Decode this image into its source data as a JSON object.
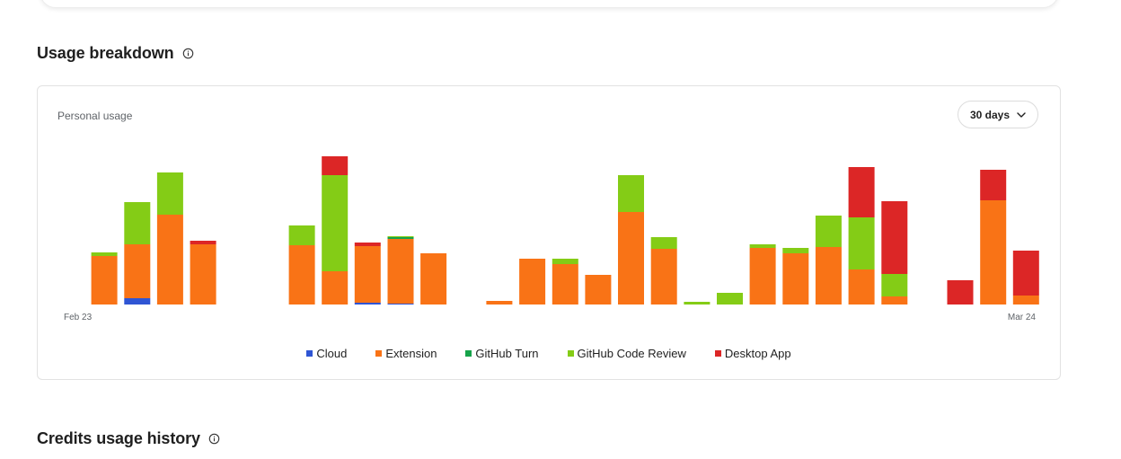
{
  "sections": {
    "usage_title": "Usage breakdown",
    "credits_title": "Credits usage history"
  },
  "card": {
    "label": "Personal usage",
    "range": "30 days"
  },
  "colors": {
    "cloud": "#2f55d4",
    "extension": "#f97316",
    "github_turn": "#16a34a",
    "github_code_review": "#84cc16",
    "desktop_app": "#dc2626"
  },
  "chart_data": {
    "type": "bar",
    "stacked": true,
    "x_start_label": "Feb 23",
    "x_end_label": "Mar 24",
    "legend_position": "bottom",
    "grid": false,
    "ylim": [
      0,
      180
    ],
    "series_order": [
      "Cloud",
      "Extension",
      "GitHub Turn",
      "GitHub Code Review",
      "Desktop App"
    ],
    "series_colors": [
      "#2f55d4",
      "#f97316",
      "#16a34a",
      "#84cc16",
      "#dc2626"
    ],
    "days": [
      {
        "values": [
          0,
          0,
          0,
          0,
          0
        ]
      },
      {
        "values": [
          0,
          54,
          0,
          4,
          0
        ]
      },
      {
        "values": [
          7,
          60,
          0,
          47,
          0
        ]
      },
      {
        "values": [
          0,
          100,
          0,
          47,
          0
        ]
      },
      {
        "values": [
          0,
          67,
          0,
          0,
          4
        ]
      },
      {
        "values": [
          0,
          0,
          0,
          0,
          0
        ]
      },
      {
        "values": [
          0,
          0,
          0,
          0,
          0
        ]
      },
      {
        "values": [
          0,
          66,
          0,
          22,
          0
        ]
      },
      {
        "values": [
          0,
          37,
          0,
          107,
          21
        ]
      },
      {
        "values": [
          2,
          63,
          0,
          0,
          4
        ]
      },
      {
        "values": [
          1,
          72,
          2,
          1,
          0
        ]
      },
      {
        "values": [
          0,
          57,
          0,
          0,
          0
        ]
      },
      {
        "values": [
          0,
          0,
          0,
          0,
          0
        ]
      },
      {
        "values": [
          0,
          4,
          0,
          0,
          0
        ]
      },
      {
        "values": [
          0,
          51,
          0,
          0,
          0
        ]
      },
      {
        "values": [
          0,
          45,
          0,
          6,
          0
        ]
      },
      {
        "values": [
          0,
          33,
          0,
          0,
          0
        ]
      },
      {
        "values": [
          0,
          103,
          0,
          41,
          0
        ]
      },
      {
        "values": [
          0,
          62,
          0,
          13,
          0
        ]
      },
      {
        "values": [
          0,
          0,
          0,
          3,
          0
        ]
      },
      {
        "values": [
          0,
          0,
          0,
          13,
          0
        ]
      },
      {
        "values": [
          0,
          63,
          0,
          4,
          0
        ]
      },
      {
        "values": [
          0,
          57,
          0,
          6,
          0
        ]
      },
      {
        "values": [
          0,
          64,
          0,
          35,
          0
        ]
      },
      {
        "values": [
          0,
          39,
          0,
          58,
          56
        ]
      },
      {
        "values": [
          0,
          9,
          0,
          25,
          81
        ]
      },
      {
        "values": [
          0,
          0,
          0,
          0,
          0
        ]
      },
      {
        "values": [
          0,
          0,
          0,
          0,
          27
        ]
      },
      {
        "values": [
          0,
          116,
          0,
          0,
          34
        ]
      },
      {
        "values": [
          0,
          10,
          0,
          0,
          50
        ]
      }
    ]
  },
  "legend": [
    {
      "label": "Cloud",
      "color": "#2f55d4"
    },
    {
      "label": "Extension",
      "color": "#f97316"
    },
    {
      "label": "GitHub Turn",
      "color": "#16a34a"
    },
    {
      "label": "GitHub Code Review",
      "color": "#84cc16"
    },
    {
      "label": "Desktop App",
      "color": "#dc2626"
    }
  ]
}
